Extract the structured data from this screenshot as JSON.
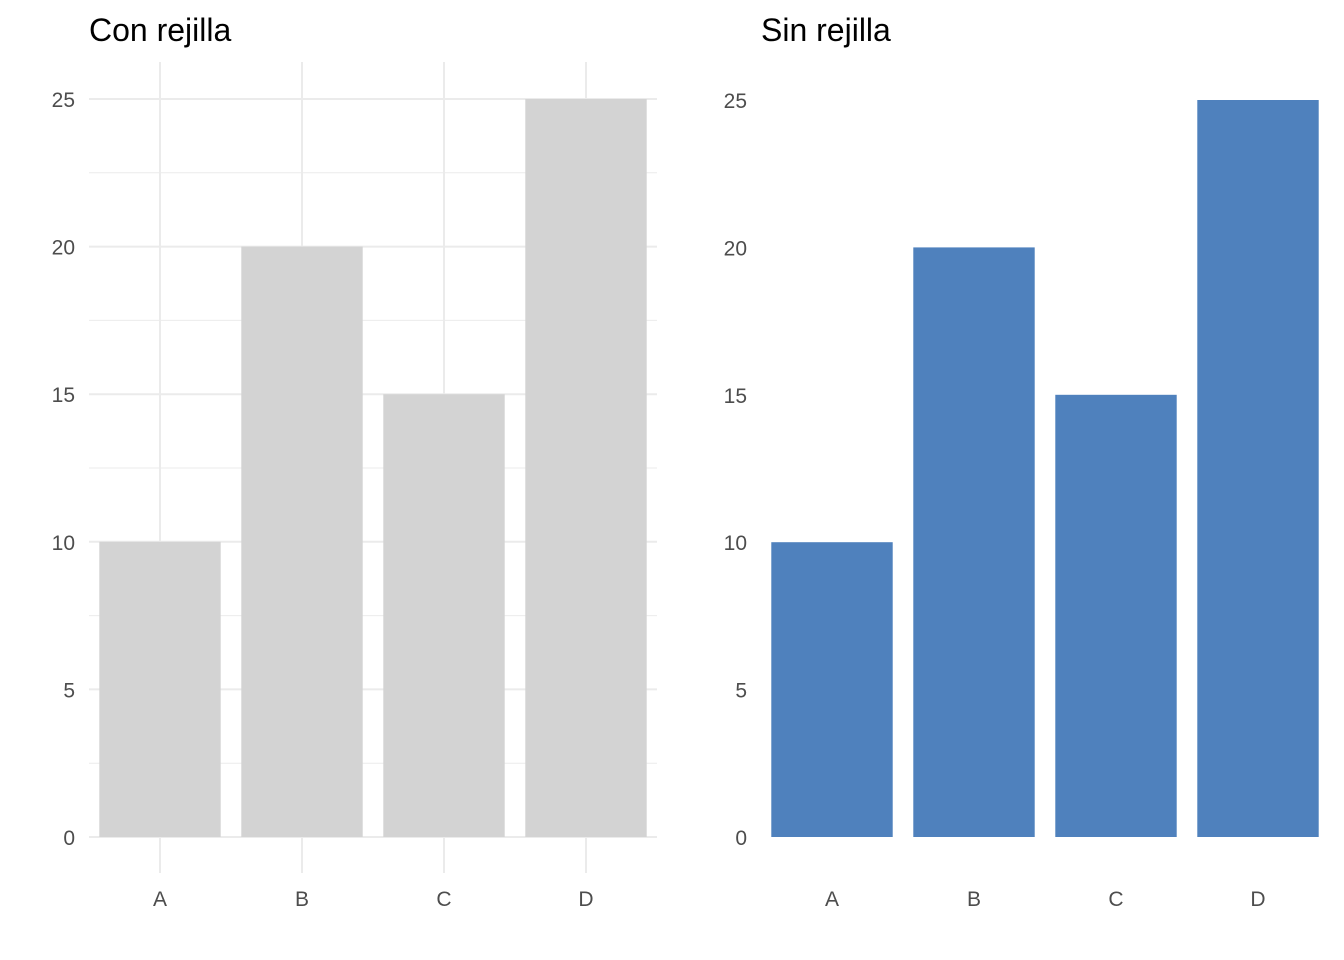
{
  "chart_data": [
    {
      "type": "bar",
      "title": "Con rejilla",
      "categories": [
        "A",
        "B",
        "C",
        "D"
      ],
      "values": [
        10,
        20,
        15,
        25
      ],
      "ylim": [
        0,
        25
      ],
      "yticks": [
        0,
        5,
        10,
        15,
        20,
        25
      ],
      "grid": true,
      "bar_color": "#d3d3d3",
      "grid_color": "#ebebeb",
      "xlabel": "",
      "ylabel": ""
    },
    {
      "type": "bar",
      "title": "Sin rejilla",
      "categories": [
        "A",
        "B",
        "C",
        "D"
      ],
      "values": [
        10,
        20,
        15,
        25
      ],
      "ylim": [
        0,
        25
      ],
      "yticks": [
        0,
        5,
        10,
        15,
        20,
        25
      ],
      "grid": false,
      "bar_color": "#4f81bd",
      "xlabel": "",
      "ylabel": ""
    }
  ]
}
